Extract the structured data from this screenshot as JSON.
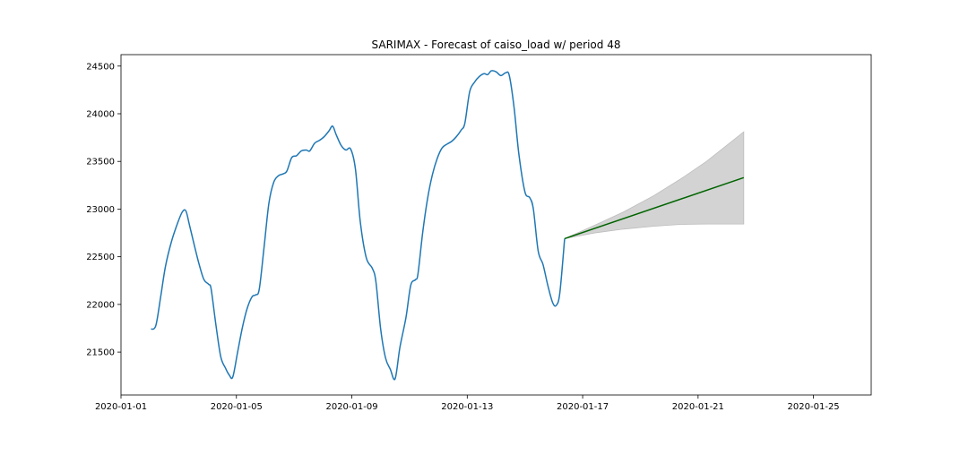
{
  "chart_data": {
    "type": "line",
    "title": "SARIMAX - Forecast of caiso_load w/ period 48",
    "xlabel": "",
    "ylabel": "",
    "x_axis": {
      "kind": "date",
      "range": [
        "2020-01-01",
        "2020-01-27"
      ],
      "ticks": [
        "2020-01-01",
        "2020-01-05",
        "2020-01-09",
        "2020-01-13",
        "2020-01-17",
        "2020-01-21",
        "2020-01-25"
      ]
    },
    "y_axis": {
      "range": [
        21050,
        24620
      ],
      "ticks": [
        21500,
        22000,
        22500,
        23000,
        23500,
        24000,
        24500
      ]
    },
    "grid": false,
    "legend": "none",
    "series": [
      {
        "role": "observed",
        "color": "#1f77b4",
        "points": [
          [
            "2020-01-02 01:00",
            21740
          ],
          [
            "2020-01-02 05:00",
            21780
          ],
          [
            "2020-01-02 09:00",
            22080
          ],
          [
            "2020-01-02 13:00",
            22400
          ],
          [
            "2020-01-02 18:00",
            22660
          ],
          [
            "2020-01-02 23:00",
            22850
          ],
          [
            "2020-01-03 03:00",
            22970
          ],
          [
            "2020-01-03 06:00",
            22980
          ],
          [
            "2020-01-03 09:00",
            22830
          ],
          [
            "2020-01-03 13:00",
            22620
          ],
          [
            "2020-01-03 17:00",
            22420
          ],
          [
            "2020-01-03 21:00",
            22260
          ],
          [
            "2020-01-04 01:00",
            22210
          ],
          [
            "2020-01-04 03:00",
            22160
          ],
          [
            "2020-01-04 07:00",
            21780
          ],
          [
            "2020-01-04 11:00",
            21450
          ],
          [
            "2020-01-04 15:00",
            21330
          ],
          [
            "2020-01-04 18:00",
            21260
          ],
          [
            "2020-01-04 21:00",
            21240
          ],
          [
            "2020-01-05 01:00",
            21500
          ],
          [
            "2020-01-05 05:00",
            21760
          ],
          [
            "2020-01-05 09:00",
            21960
          ],
          [
            "2020-01-05 13:00",
            22080
          ],
          [
            "2020-01-05 16:00",
            22100
          ],
          [
            "2020-01-05 19:00",
            22160
          ],
          [
            "2020-01-05 23:00",
            22600
          ],
          [
            "2020-01-06 03:00",
            23060
          ],
          [
            "2020-01-06 07:00",
            23280
          ],
          [
            "2020-01-06 11:00",
            23350
          ],
          [
            "2020-01-06 15:00",
            23370
          ],
          [
            "2020-01-06 18:00",
            23400
          ],
          [
            "2020-01-06 22:00",
            23540
          ],
          [
            "2020-01-07 02:00",
            23560
          ],
          [
            "2020-01-07 06:00",
            23610
          ],
          [
            "2020-01-07 10:00",
            23620
          ],
          [
            "2020-01-07 13:00",
            23610
          ],
          [
            "2020-01-07 17:00",
            23690
          ],
          [
            "2020-01-07 21:00",
            23720
          ],
          [
            "2020-01-08 01:00",
            23760
          ],
          [
            "2020-01-08 05:00",
            23820
          ],
          [
            "2020-01-08 08:00",
            23870
          ],
          [
            "2020-01-08 11:00",
            23780
          ],
          [
            "2020-01-08 15:00",
            23670
          ],
          [
            "2020-01-08 19:00",
            23620
          ],
          [
            "2020-01-08 23:00",
            23630
          ],
          [
            "2020-01-09 03:00",
            23420
          ],
          [
            "2020-01-09 07:00",
            22870
          ],
          [
            "2020-01-09 12:00",
            22490
          ],
          [
            "2020-01-09 17:00",
            22380
          ],
          [
            "2020-01-09 20:00",
            22240
          ],
          [
            "2020-01-10 00:00",
            21740
          ],
          [
            "2020-01-10 04:00",
            21440
          ],
          [
            "2020-01-10 08:00",
            21320
          ],
          [
            "2020-01-10 12:00",
            21220
          ],
          [
            "2020-01-10 16:00",
            21550
          ],
          [
            "2020-01-10 21:00",
            21860
          ],
          [
            "2020-01-11 01:00",
            22200
          ],
          [
            "2020-01-11 05:00",
            22260
          ],
          [
            "2020-01-11 07:00",
            22320
          ],
          [
            "2020-01-11 11:00",
            22760
          ],
          [
            "2020-01-11 15:00",
            23110
          ],
          [
            "2020-01-11 19:00",
            23360
          ],
          [
            "2020-01-11 23:00",
            23530
          ],
          [
            "2020-01-12 03:00",
            23640
          ],
          [
            "2020-01-12 07:00",
            23680
          ],
          [
            "2020-01-12 11:00",
            23710
          ],
          [
            "2020-01-12 15:00",
            23760
          ],
          [
            "2020-01-12 19:00",
            23830
          ],
          [
            "2020-01-12 22:00",
            23900
          ],
          [
            "2020-01-13 02:00",
            24230
          ],
          [
            "2020-01-13 06:00",
            24330
          ],
          [
            "2020-01-13 10:00",
            24390
          ],
          [
            "2020-01-13 14:00",
            24420
          ],
          [
            "2020-01-13 17:00",
            24410
          ],
          [
            "2020-01-13 20:00",
            24450
          ],
          [
            "2020-01-14 00:00",
            24440
          ],
          [
            "2020-01-14 04:00",
            24400
          ],
          [
            "2020-01-14 08:00",
            24430
          ],
          [
            "2020-01-14 11:00",
            24400
          ],
          [
            "2020-01-14 15:00",
            24060
          ],
          [
            "2020-01-14 19:00",
            23570
          ],
          [
            "2020-01-15 00:00",
            23180
          ],
          [
            "2020-01-15 04:00",
            23120
          ],
          [
            "2020-01-15 07:00",
            23000
          ],
          [
            "2020-01-15 11:00",
            22560
          ],
          [
            "2020-01-15 15:00",
            22420
          ],
          [
            "2020-01-15 19:00",
            22200
          ],
          [
            "2020-01-15 23:00",
            22020
          ],
          [
            "2020-01-16 02:00",
            21990
          ],
          [
            "2020-01-16 05:00",
            22120
          ],
          [
            "2020-01-16 09:00",
            22690
          ]
        ]
      },
      {
        "role": "forecast",
        "color": "#006400",
        "points": [
          [
            "2020-01-16 09:00",
            22690
          ],
          [
            "2020-01-22 14:00",
            23330
          ]
        ]
      }
    ],
    "confidence_band": {
      "color": "#d3d3d3",
      "upper": [
        [
          "2020-01-16 09:00",
          22690
        ],
        [
          "2020-01-17 10:00",
          22830
        ],
        [
          "2020-01-18 10:00",
          22970
        ],
        [
          "2020-01-19 11:00",
          23140
        ],
        [
          "2020-01-20 10:00",
          23320
        ],
        [
          "2020-01-21 07:00",
          23500
        ],
        [
          "2020-01-22 14:00",
          23810
        ]
      ],
      "lower": [
        [
          "2020-01-16 09:00",
          22690
        ],
        [
          "2020-01-17 10:00",
          22750
        ],
        [
          "2020-01-18 10:00",
          22790
        ],
        [
          "2020-01-19 11:00",
          22820
        ],
        [
          "2020-01-20 10:00",
          22840
        ],
        [
          "2020-01-21 07:00",
          22843
        ],
        [
          "2020-01-22 14:00",
          22843
        ]
      ]
    }
  }
}
